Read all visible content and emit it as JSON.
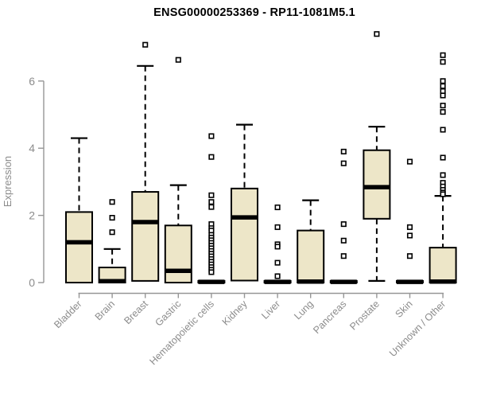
{
  "chart_data": {
    "type": "boxplot",
    "title": "ENSG00000253369 - RP11-1081M5.1",
    "ylabel": "Expression",
    "xlabel": "",
    "yticks": [
      0,
      2,
      4,
      6
    ],
    "ylim": [
      0,
      7.5
    ],
    "grid": false,
    "legend": "none",
    "categories": [
      "Bladder",
      "Brain",
      "Breast",
      "Gastric",
      "Hematopoietic cells",
      "Kidney",
      "Liver",
      "Lung",
      "Pancreas",
      "Prostate",
      "Skin",
      "Unknown / Other"
    ],
    "series": [
      {
        "category": "Bladder",
        "whisker_low": 0,
        "q1": 0,
        "median": 1.2,
        "q3": 2.1,
        "whisker_high": 4.3,
        "outliers": []
      },
      {
        "category": "Brain",
        "whisker_low": 0,
        "q1": 0,
        "median": 0.04,
        "q3": 0.45,
        "whisker_high": 1.0,
        "outliers": [
          2.4,
          1.93,
          1.5
        ]
      },
      {
        "category": "Breast",
        "whisker_low": 0.05,
        "q1": 0.05,
        "median": 1.8,
        "q3": 2.7,
        "whisker_high": 6.45,
        "outliers": [
          7.08
        ]
      },
      {
        "category": "Gastric",
        "whisker_low": 0,
        "q1": 0,
        "median": 0.35,
        "q3": 1.7,
        "whisker_high": 2.9,
        "outliers": [
          6.63
        ]
      },
      {
        "category": "Hematopoietic cells",
        "whisker_low": 0,
        "q1": 0,
        "median": 0.02,
        "q3": 0.05,
        "whisker_high": 0.05,
        "outliers": [
          4.36,
          3.74,
          2.6,
          2.4,
          2.25,
          1.74,
          1.62,
          1.55,
          1.42,
          1.34,
          1.26,
          1.18,
          1.1,
          1.02,
          0.94,
          0.86,
          0.78,
          0.7,
          0.62,
          0.54,
          0.46,
          0.38,
          0.31
        ]
      },
      {
        "category": "Kidney",
        "whisker_low": 0.05,
        "q1": 0.06,
        "median": 1.94,
        "q3": 2.8,
        "whisker_high": 4.7,
        "outliers": []
      },
      {
        "category": "Liver",
        "whisker_low": 0,
        "q1": 0,
        "median": 0.02,
        "q3": 0.05,
        "whisker_high": 0.05,
        "outliers": [
          2.24,
          1.65,
          1.14,
          1.07,
          0.59,
          0.19
        ]
      },
      {
        "category": "Lung",
        "whisker_low": 0,
        "q1": 0,
        "median": 0.03,
        "q3": 1.55,
        "whisker_high": 2.45,
        "outliers": []
      },
      {
        "category": "Pancreas",
        "whisker_low": 0,
        "q1": 0,
        "median": 0.02,
        "q3": 0.05,
        "whisker_high": 0.05,
        "outliers": [
          3.9,
          3.55,
          1.74,
          1.25,
          0.79
        ]
      },
      {
        "category": "Prostate",
        "whisker_low": 0.05,
        "q1": 1.9,
        "median": 2.84,
        "q3": 3.94,
        "whisker_high": 4.64,
        "outliers": [
          7.4
        ]
      },
      {
        "category": "Skin",
        "whisker_low": 0,
        "q1": 0,
        "median": 0.02,
        "q3": 0.05,
        "whisker_high": 0.05,
        "outliers": [
          3.6,
          1.65,
          1.4,
          0.79
        ]
      },
      {
        "category": "Unknown / Other",
        "whisker_low": 0,
        "q1": 0,
        "median": 0.03,
        "q3": 1.04,
        "whisker_high": 2.58,
        "outliers": [
          6.77,
          6.57,
          6.0,
          5.85,
          5.7,
          5.57,
          5.27,
          5.08,
          4.55,
          3.72,
          3.2,
          2.97,
          2.86,
          2.76,
          2.68,
          2.63
        ]
      }
    ],
    "colors": {
      "box_fill": "#EDE6C8",
      "box_stroke": "#000000",
      "median": "#000000",
      "whisker": "#000000",
      "outlier_fill": "#ffffff",
      "axis": "#969696",
      "text": "#8C8C8C",
      "title": "#000000",
      "background": "#ffffff"
    }
  }
}
